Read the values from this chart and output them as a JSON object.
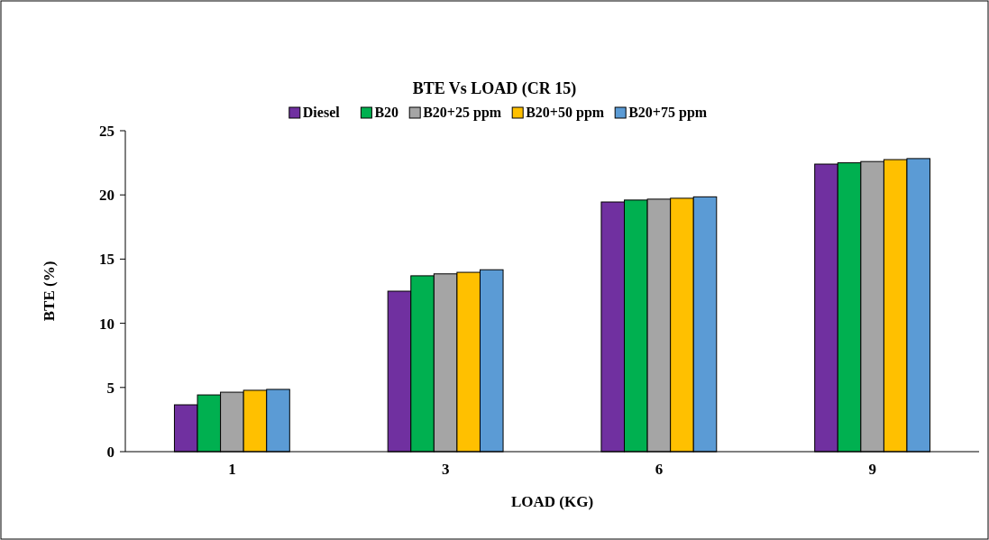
{
  "chart_data": {
    "type": "bar",
    "title": "BTE Vs LOAD (CR 15)",
    "xlabel": "LOAD (KG)",
    "ylabel": "BTE (%)",
    "categories": [
      "1",
      "3",
      "6",
      "9"
    ],
    "series": [
      {
        "name": "Diesel",
        "color": "#7030a0",
        "values": [
          3.65,
          12.5,
          19.45,
          22.4
        ]
      },
      {
        "name": "B20",
        "color": "#00b050",
        "values": [
          4.42,
          13.7,
          19.6,
          22.5
        ]
      },
      {
        "name": "B20+25 ppm",
        "color": "#a5a5a5",
        "values": [
          4.63,
          13.85,
          19.67,
          22.6
        ]
      },
      {
        "name": "B20+50 ppm",
        "color": "#ffc000",
        "values": [
          4.78,
          13.97,
          19.74,
          22.75
        ]
      },
      {
        "name": "B20+75 ppm",
        "color": "#5b9bd5",
        "values": [
          4.85,
          14.17,
          19.85,
          22.83
        ]
      }
    ],
    "ylim": [
      0,
      25
    ],
    "yticks": [
      0,
      5,
      10,
      15,
      20,
      25
    ],
    "grid": false,
    "legend": "top"
  }
}
